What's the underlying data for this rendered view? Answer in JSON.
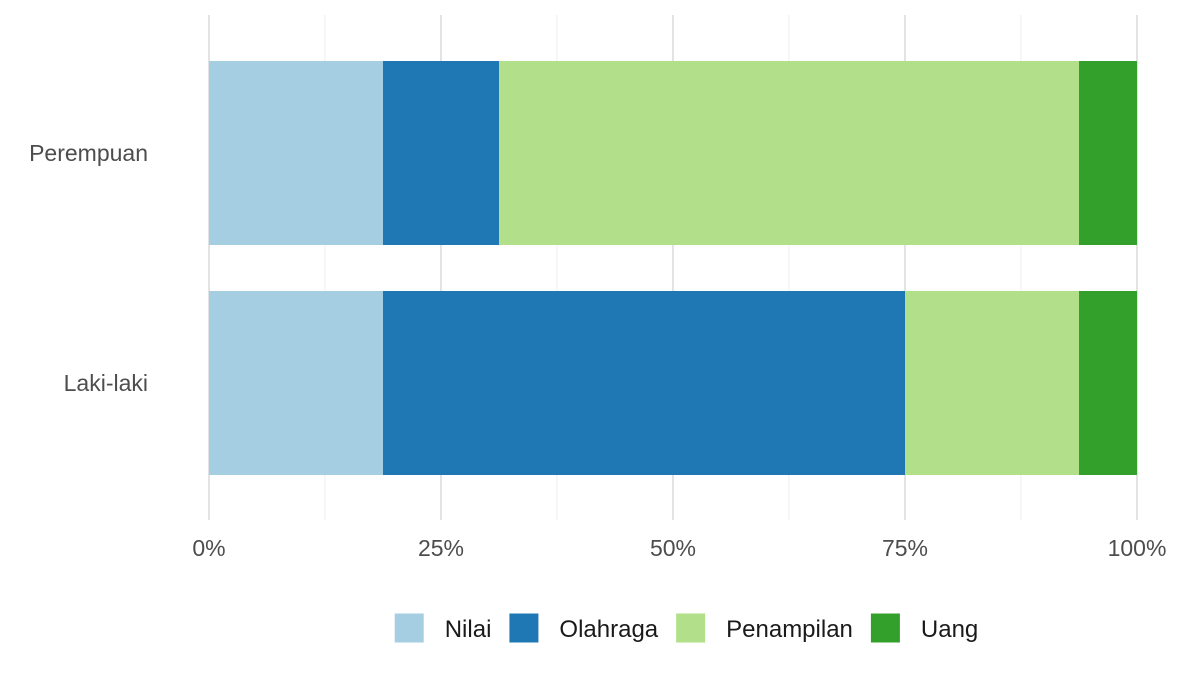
{
  "chart_data": {
    "type": "bar",
    "orientation": "horizontal",
    "stacked": true,
    "normalized": true,
    "categories": [
      "Perempuan",
      "Laki-laki"
    ],
    "series": [
      {
        "name": "Nilai",
        "color": "#a6cee3",
        "values": [
          0.1875,
          0.1875
        ]
      },
      {
        "name": "Olahraga",
        "color": "#1f78b4",
        "values": [
          0.125,
          0.5625
        ]
      },
      {
        "name": "Penampilan",
        "color": "#b2df8a",
        "values": [
          0.625,
          0.1875
        ]
      },
      {
        "name": "Uang",
        "color": "#33a02c",
        "values": [
          0.0625,
          0.0625
        ]
      }
    ],
    "xlim": [
      0,
      1
    ],
    "xticks": [
      {
        "value": 0,
        "label": "0%"
      },
      {
        "value": 0.25,
        "label": "25%"
      },
      {
        "value": 0.5,
        "label": "50%"
      },
      {
        "value": 0.75,
        "label": "75%"
      },
      {
        "value": 1,
        "label": "100%"
      }
    ],
    "grid": true,
    "legend_position": "bottom"
  }
}
